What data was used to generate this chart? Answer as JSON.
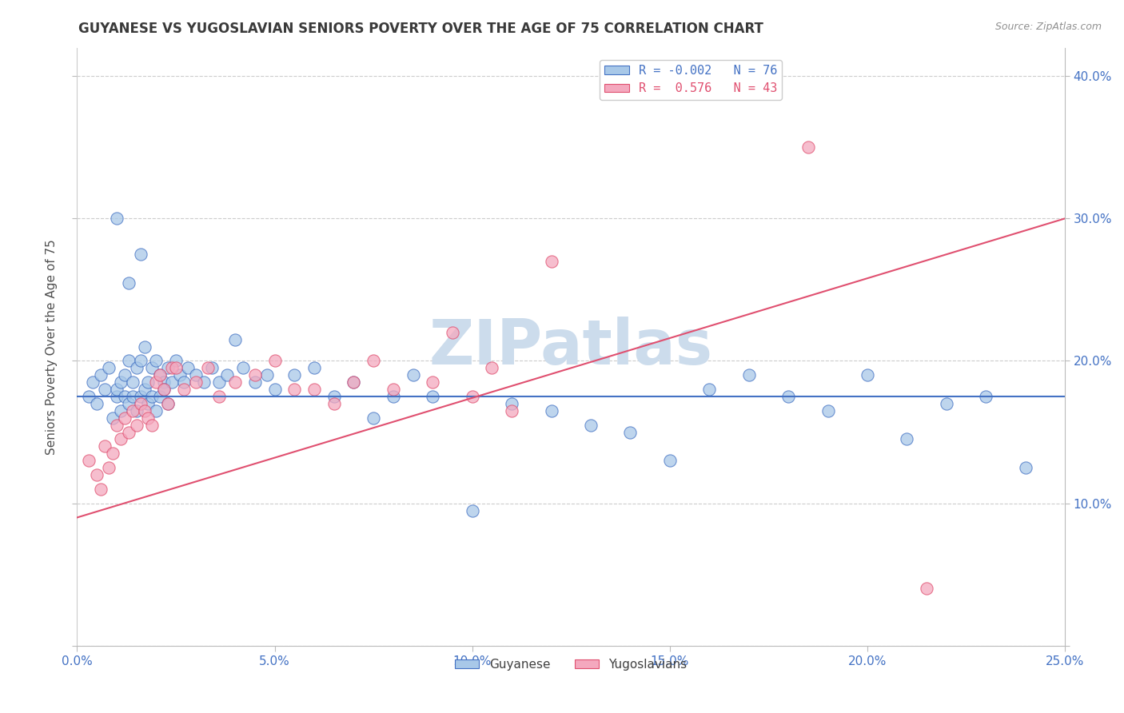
{
  "title": "GUYANESE VS YUGOSLAVIAN SENIORS POVERTY OVER THE AGE OF 75 CORRELATION CHART",
  "source_text": "Source: ZipAtlas.com",
  "ylabel": "Seniors Poverty Over the Age of 75",
  "xlim": [
    0.0,
    0.25
  ],
  "ylim": [
    0.0,
    0.42
  ],
  "xticks": [
    0.0,
    0.05,
    0.1,
    0.15,
    0.2,
    0.25
  ],
  "xticklabels": [
    "0.0%",
    "5.0%",
    "10.0%",
    "15.0%",
    "20.0%",
    "25.0%"
  ],
  "yticks": [
    0.0,
    0.1,
    0.2,
    0.3,
    0.4
  ],
  "yticklabels_right": [
    "",
    "10.0%",
    "20.0%",
    "30.0%",
    "40.0%"
  ],
  "legend_blue_label": "R = -0.002   N = 76",
  "legend_pink_label": "R =  0.576   N = 43",
  "blue_color": "#a8c8e8",
  "pink_color": "#f4a8be",
  "blue_line_color": "#4472c4",
  "pink_line_color": "#e05070",
  "watermark": "ZIPatlas",
  "watermark_color": "#ccdcec",
  "title_color": "#3a3a3a",
  "tick_label_color": "#4472c4",
  "blue_trend_y": [
    0.175,
    0.175
  ],
  "pink_trend_y0": 0.09,
  "pink_trend_y1": 0.3,
  "blue_scatter_x": [
    0.003,
    0.004,
    0.005,
    0.006,
    0.007,
    0.008,
    0.009,
    0.01,
    0.01,
    0.011,
    0.011,
    0.012,
    0.012,
    0.013,
    0.013,
    0.014,
    0.014,
    0.015,
    0.015,
    0.016,
    0.016,
    0.017,
    0.017,
    0.018,
    0.018,
    0.019,
    0.019,
    0.02,
    0.02,
    0.021,
    0.021,
    0.022,
    0.022,
    0.023,
    0.023,
    0.024,
    0.025,
    0.026,
    0.027,
    0.028,
    0.03,
    0.032,
    0.034,
    0.036,
    0.038,
    0.04,
    0.042,
    0.045,
    0.048,
    0.05,
    0.055,
    0.06,
    0.065,
    0.07,
    0.075,
    0.08,
    0.085,
    0.09,
    0.1,
    0.11,
    0.12,
    0.13,
    0.14,
    0.15,
    0.16,
    0.17,
    0.18,
    0.19,
    0.2,
    0.21,
    0.22,
    0.23,
    0.24,
    0.01,
    0.013,
    0.016
  ],
  "blue_scatter_y": [
    0.175,
    0.185,
    0.17,
    0.19,
    0.18,
    0.195,
    0.16,
    0.175,
    0.18,
    0.185,
    0.165,
    0.19,
    0.175,
    0.2,
    0.17,
    0.185,
    0.175,
    0.195,
    0.165,
    0.2,
    0.175,
    0.21,
    0.18,
    0.185,
    0.17,
    0.195,
    0.175,
    0.2,
    0.165,
    0.19,
    0.175,
    0.185,
    0.18,
    0.195,
    0.17,
    0.185,
    0.2,
    0.19,
    0.185,
    0.195,
    0.19,
    0.185,
    0.195,
    0.185,
    0.19,
    0.215,
    0.195,
    0.185,
    0.19,
    0.18,
    0.19,
    0.195,
    0.175,
    0.185,
    0.16,
    0.175,
    0.19,
    0.175,
    0.095,
    0.17,
    0.165,
    0.155,
    0.15,
    0.13,
    0.18,
    0.19,
    0.175,
    0.165,
    0.19,
    0.145,
    0.17,
    0.175,
    0.125,
    0.3,
    0.255,
    0.275
  ],
  "pink_scatter_x": [
    0.003,
    0.005,
    0.006,
    0.007,
    0.008,
    0.009,
    0.01,
    0.011,
    0.012,
    0.013,
    0.014,
    0.015,
    0.016,
    0.017,
    0.018,
    0.019,
    0.02,
    0.021,
    0.022,
    0.023,
    0.024,
    0.025,
    0.027,
    0.03,
    0.033,
    0.036,
    0.04,
    0.045,
    0.05,
    0.055,
    0.06,
    0.065,
    0.07,
    0.075,
    0.08,
    0.09,
    0.095,
    0.1,
    0.105,
    0.11,
    0.12,
    0.185,
    0.215
  ],
  "pink_scatter_y": [
    0.13,
    0.12,
    0.11,
    0.14,
    0.125,
    0.135,
    0.155,
    0.145,
    0.16,
    0.15,
    0.165,
    0.155,
    0.17,
    0.165,
    0.16,
    0.155,
    0.185,
    0.19,
    0.18,
    0.17,
    0.195,
    0.195,
    0.18,
    0.185,
    0.195,
    0.175,
    0.185,
    0.19,
    0.2,
    0.18,
    0.18,
    0.17,
    0.185,
    0.2,
    0.18,
    0.185,
    0.22,
    0.175,
    0.195,
    0.165,
    0.27,
    0.35,
    0.04
  ]
}
